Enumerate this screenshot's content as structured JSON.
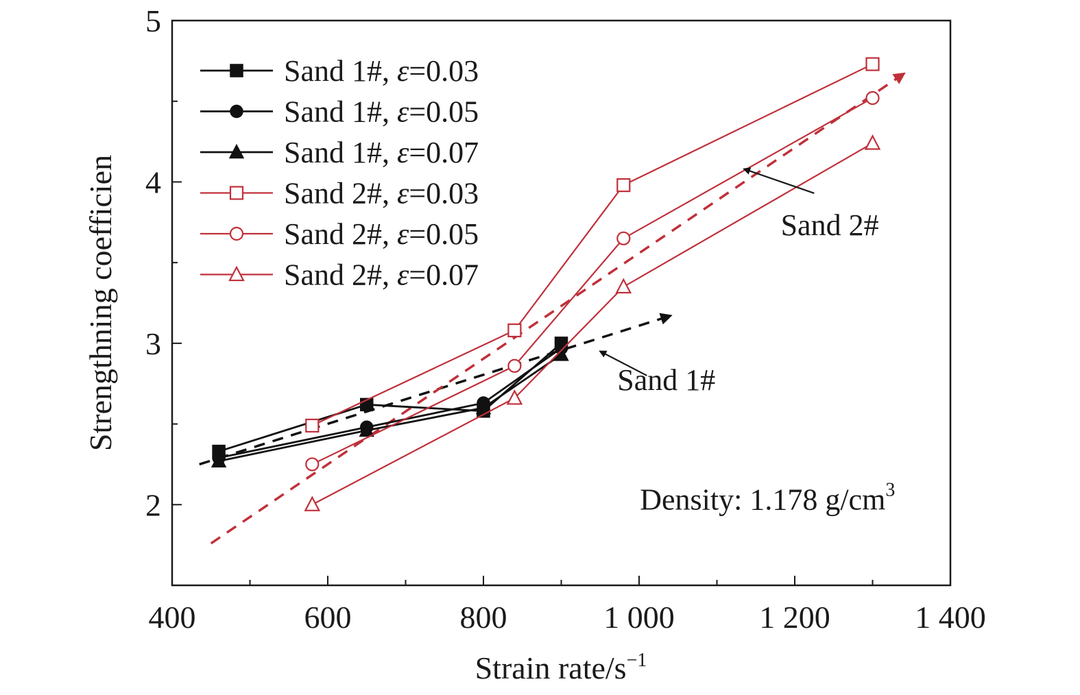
{
  "chart_data": {
    "type": "line",
    "title": "",
    "xlabel": "Strain rate/s",
    "xlabel_sup": "−1",
    "ylabel": "Strengthning coefficien",
    "xlim": [
      400,
      1400
    ],
    "ylim": [
      1.5,
      5
    ],
    "xticks": [
      400,
      600,
      800,
      1000,
      1200,
      1400
    ],
    "xtick_labels": [
      "400",
      "600",
      "800",
      "1 000",
      "1 200",
      "1 400"
    ],
    "yticks": [
      2,
      3,
      4,
      5
    ],
    "ytick_labels": [
      "2",
      "3",
      "4",
      "5"
    ],
    "grid": false,
    "legend_position": "top-left",
    "series": [
      {
        "name": "Sand 1#, ε=0.03",
        "prefix": "Sand 1#, ",
        "eps": "ε",
        "suffix": "=0.03",
        "color": "#111111",
        "marker": "square",
        "filled": true,
        "x": [
          460,
          650,
          800,
          900
        ],
        "y": [
          2.33,
          2.62,
          2.58,
          3.0
        ]
      },
      {
        "name": "Sand 1#, ε=0.05",
        "prefix": "Sand 1#, ",
        "eps": "ε",
        "suffix": "=0.05",
        "color": "#111111",
        "marker": "circle",
        "filled": true,
        "x": [
          460,
          650,
          800,
          900
        ],
        "y": [
          2.29,
          2.48,
          2.63,
          2.97
        ]
      },
      {
        "name": "Sand 1#, ε=0.07",
        "prefix": "Sand 1#, ",
        "eps": "ε",
        "suffix": "=0.07",
        "color": "#111111",
        "marker": "triangle",
        "filled": true,
        "x": [
          460,
          650,
          800,
          900
        ],
        "y": [
          2.27,
          2.46,
          2.6,
          2.93
        ]
      },
      {
        "name": "Sand 2#, ε=0.03",
        "prefix": "Sand 2#, ",
        "eps": "ε",
        "suffix": "=0.03",
        "color": "#c0303a",
        "marker": "square",
        "filled": false,
        "x": [
          580,
          840,
          980,
          1300
        ],
        "y": [
          2.49,
          3.08,
          3.98,
          4.73
        ]
      },
      {
        "name": "Sand 2#, ε=0.05",
        "prefix": "Sand 2#, ",
        "eps": "ε",
        "suffix": "=0.05",
        "color": "#c0303a",
        "marker": "circle",
        "filled": false,
        "x": [
          580,
          840,
          980,
          1300
        ],
        "y": [
          2.25,
          2.86,
          3.65,
          4.52
        ]
      },
      {
        "name": "Sand 2#, ε=0.07",
        "prefix": "Sand 2#, ",
        "eps": "ε",
        "suffix": "=0.07",
        "color": "#c0303a",
        "marker": "triangle",
        "filled": false,
        "x": [
          580,
          840,
          980,
          1300
        ],
        "y": [
          2.0,
          2.66,
          3.35,
          4.24
        ]
      }
    ],
    "trend_lines": [
      {
        "color": "#111111",
        "x": [
          435,
          1040
        ],
        "y": [
          2.25,
          3.17
        ]
      },
      {
        "color": "#c0303a",
        "x": [
          450,
          1340
        ],
        "y": [
          1.76,
          4.67
        ]
      }
    ],
    "annotations": [
      {
        "text": "Sand 2#",
        "x": 1245,
        "y": 3.67,
        "arrow_from": [
          1225,
          3.93
        ],
        "arrow_to": [
          1135,
          4.08
        ]
      },
      {
        "text": "Sand 1#",
        "x": 1035,
        "y": 2.71,
        "arrow_from": [
          1010,
          2.8
        ],
        "arrow_to": [
          950,
          2.95
        ]
      },
      {
        "text": "Density: 1.178 g/cm",
        "sup": "3",
        "x": 1165,
        "y": 1.97
      }
    ]
  }
}
